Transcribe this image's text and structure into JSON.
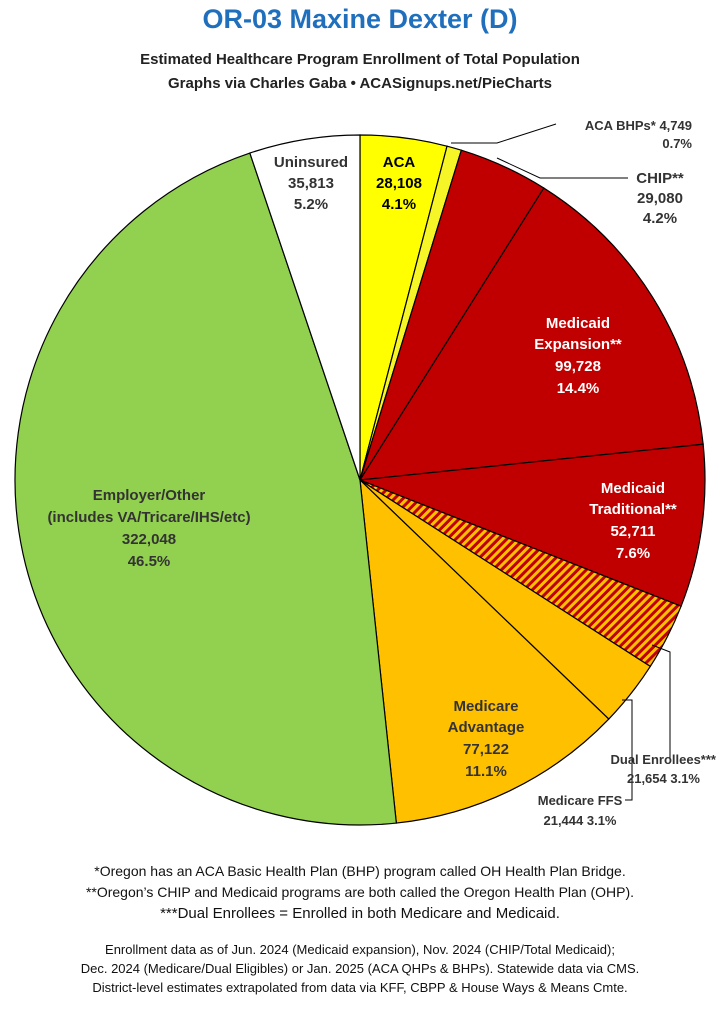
{
  "header": {
    "title": "OR-03 Maxine Dexter (D)",
    "subtitle1": "Estimated Healthcare Program Enrollment of Total Population",
    "subtitle2": "Graphs via Charles Gaba  •  ACASignups.net/PieCharts"
  },
  "chart_data": {
    "type": "pie",
    "title": "OR-03 Maxine Dexter (D)",
    "start": "12 o'clock",
    "direction": "clockwise",
    "slices": [
      {
        "name": "ACA",
        "value": 28108,
        "percent": "4.1%",
        "value_label": "28,108",
        "color": "#ffff00"
      },
      {
        "name": "ACA BHPs*",
        "value": 4749,
        "percent": "0.7%",
        "value_label": "4,749",
        "color": "#f5f528"
      },
      {
        "name": "CHIP**",
        "value": 29080,
        "percent": "4.2%",
        "value_label": "29,080",
        "color": "#c00000"
      },
      {
        "name": "Medicaid Expansion**",
        "value": 99728,
        "percent": "14.4%",
        "value_label": "99,728",
        "color": "#c00000"
      },
      {
        "name": "Medicaid Traditional**",
        "value": 52711,
        "percent": "7.6%",
        "value_label": "52,711",
        "color": "#c00000"
      },
      {
        "name": "Dual Enrollees***",
        "value": 21654,
        "percent": "3.1%",
        "value_label": "21,654",
        "color": "#c00000",
        "pattern": "hatched"
      },
      {
        "name": "Medicare FFS",
        "value": 21444,
        "percent": "3.1%",
        "value_label": "21,444",
        "color": "#ffc000"
      },
      {
        "name": "Medicare Advantage",
        "value": 77122,
        "percent": "11.1%",
        "value_label": "77,122",
        "color": "#ffc000"
      },
      {
        "name": "Employer/Other (includes VA/Tricare/IHS/etc)",
        "value": 322048,
        "percent": "46.5%",
        "value_label": "322,048",
        "color": "#92d050"
      },
      {
        "name": "Uninsured",
        "value": 35813,
        "percent": "5.2%",
        "value_label": "35,813",
        "color": "#ffffff"
      }
    ]
  },
  "labels": {
    "aca": {
      "l1": "ACA",
      "l2": "28,108",
      "l3": "4.1%"
    },
    "bhp": {
      "l1": "ACA BHPs* 4,749",
      "l2": "0.7%"
    },
    "chip": {
      "l1": "CHIP**",
      "l2": "29,080",
      "l3": "4.2%"
    },
    "mexp": {
      "l1": "Medicaid",
      "l2": "Expansion**",
      "l3": "99,728",
      "l4": "14.4%"
    },
    "mtrad": {
      "l1": "Medicaid",
      "l2": "Traditional**",
      "l3": "52,711",
      "l4": "7.6%"
    },
    "dual": {
      "l1": "Dual Enrollees***",
      "l2": "21,654 3.1%"
    },
    "ffs": {
      "l1": "Medicare FFS",
      "l2": "21,444 3.1%"
    },
    "madv": {
      "l1": "Medicare",
      "l2": "Advantage",
      "l3": "77,122",
      "l4": "11.1%"
    },
    "emp": {
      "l1": "Employer/Other",
      "l2": "(includes VA/Tricare/IHS/etc)",
      "l3": "322,048",
      "l4": "46.5%"
    },
    "unins": {
      "l1": "Uninsured",
      "l2": "35,813",
      "l3": "5.2%"
    }
  },
  "notes": {
    "n1": "*Oregon has an ACA Basic Health Plan (BHP) program called OH Health Plan Bridge.",
    "n2": "**Oregon’s CHIP and Medicaid programs are both called the Oregon Health Plan (OHP).",
    "n3": "***Dual Enrollees = Enrolled in both Medicare and Medicaid.",
    "f1": "Enrollment data as of Jun. 2024 (Medicaid expansion), Nov. 2024 (CHIP/Total Medicaid);",
    "f2": "Dec. 2024 (Medicare/Dual Eligibles) or Jan. 2025 (ACA QHPs & BHPs). Statewide data via CMS.",
    "f3": "District-level estimates extrapolated from data via KFF, CBPP & House Ways & Means Cmte."
  }
}
